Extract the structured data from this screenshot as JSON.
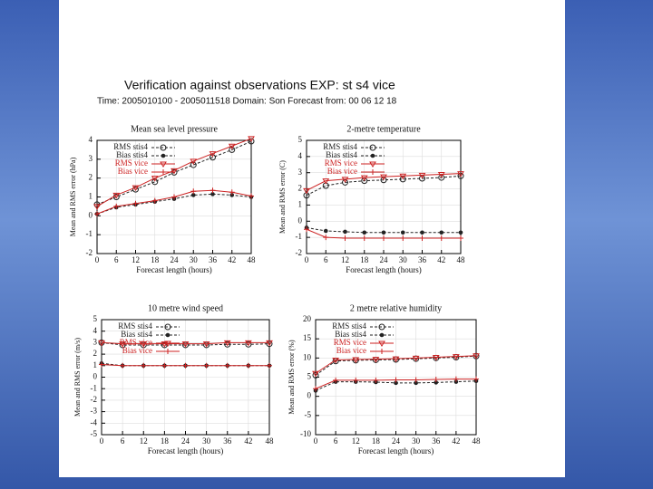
{
  "title": "Verification against observations EXP:  st s4  vice",
  "subtitle": "Time: 2005010100 - 2005011518   Domain: Son   Forecast from: 00 06 12 18",
  "chart_data": [
    {
      "type": "line",
      "title": "Mean sea level pressure",
      "xlabel": "Forecast length (hours)",
      "ylabel": "Mean and RMS error (hPa)",
      "x": [
        0,
        6,
        12,
        18,
        24,
        30,
        36,
        42,
        48
      ],
      "xlim": [
        0,
        48
      ],
      "xticks": [
        0,
        6,
        12,
        18,
        24,
        30,
        36,
        42,
        48
      ],
      "ylim": [
        -2,
        4
      ],
      "yticks": [
        -2,
        -1,
        0,
        1,
        2,
        3,
        4
      ],
      "grid": true,
      "legend": "top-left",
      "series": [
        {
          "name": "RMS stis4",
          "color": "#222222",
          "dashed": true,
          "marker": "circle",
          "values": [
            0.6,
            1.0,
            1.4,
            1.8,
            2.3,
            2.7,
            3.1,
            3.5,
            3.95
          ]
        },
        {
          "name": "Bias stis4",
          "color": "#222222",
          "dashed": true,
          "marker": "dot",
          "values": [
            0.1,
            0.45,
            0.6,
            0.75,
            0.9,
            1.1,
            1.15,
            1.1,
            1.0
          ]
        },
        {
          "name": "RMS vice",
          "color": "#cc2222",
          "dashed": false,
          "marker": "triangle",
          "values": [
            0.5,
            1.1,
            1.5,
            2.0,
            2.4,
            2.9,
            3.3,
            3.7,
            4.1
          ]
        },
        {
          "name": "Bias vice",
          "color": "#cc2222",
          "dashed": false,
          "marker": "plus",
          "values": [
            0.1,
            0.5,
            0.65,
            0.8,
            1.0,
            1.3,
            1.35,
            1.25,
            1.05
          ]
        }
      ]
    },
    {
      "type": "line",
      "title": "2-metre temperature",
      "xlabel": "Forecast length (hours)",
      "ylabel": "Mean and RMS error (C)",
      "x": [
        0,
        6,
        12,
        18,
        24,
        30,
        36,
        42,
        48
      ],
      "xlim": [
        0,
        48
      ],
      "xticks": [
        0,
        6,
        12,
        18,
        24,
        30,
        36,
        42,
        48
      ],
      "ylim": [
        -2,
        5
      ],
      "yticks": [
        -2,
        -1,
        0,
        1,
        2,
        3,
        4,
        5
      ],
      "grid": true,
      "legend": "top-left",
      "series": [
        {
          "name": "RMS stis4",
          "color": "#222222",
          "dashed": true,
          "marker": "circle",
          "values": [
            1.6,
            2.2,
            2.4,
            2.5,
            2.55,
            2.6,
            2.65,
            2.7,
            2.8
          ]
        },
        {
          "name": "Bias stis4",
          "color": "#222222",
          "dashed": true,
          "marker": "dot",
          "values": [
            -0.4,
            -0.6,
            -0.65,
            -0.7,
            -0.7,
            -0.7,
            -0.7,
            -0.7,
            -0.7
          ]
        },
        {
          "name": "RMS vice",
          "color": "#cc2222",
          "dashed": false,
          "marker": "triangle",
          "values": [
            1.9,
            2.5,
            2.6,
            2.7,
            2.75,
            2.8,
            2.85,
            2.9,
            2.95
          ]
        },
        {
          "name": "Bias vice",
          "color": "#cc2222",
          "dashed": false,
          "marker": "plus",
          "values": [
            -0.5,
            -1.0,
            -1.05,
            -1.05,
            -1.05,
            -1.05,
            -1.05,
            -1.05,
            -1.05
          ]
        }
      ]
    },
    {
      "type": "line",
      "title": "10 metre wind speed",
      "xlabel": "Forecast length (hours)",
      "ylabel": "Mean and RMS error (m/s)",
      "x": [
        0,
        6,
        12,
        18,
        24,
        30,
        36,
        42,
        48
      ],
      "xlim": [
        0,
        48
      ],
      "xticks": [
        0,
        6,
        12,
        18,
        24,
        30,
        36,
        42,
        48
      ],
      "ylim": [
        -5,
        5
      ],
      "yticks": [
        -5,
        -4,
        -3,
        -2,
        -1,
        0,
        1,
        2,
        3,
        4,
        5
      ],
      "grid": true,
      "legend": "top-left",
      "series": [
        {
          "name": "RMS stis4",
          "color": "#222222",
          "dashed": true,
          "marker": "circle",
          "values": [
            3.0,
            2.8,
            2.8,
            2.8,
            2.8,
            2.8,
            2.85,
            2.85,
            2.9
          ]
        },
        {
          "name": "Bias stis4",
          "color": "#222222",
          "dashed": true,
          "marker": "dot",
          "values": [
            1.2,
            1.0,
            1.0,
            1.0,
            1.0,
            1.0,
            1.0,
            1.0,
            1.0
          ]
        },
        {
          "name": "RMS vice",
          "color": "#cc2222",
          "dashed": false,
          "marker": "triangle",
          "values": [
            3.0,
            2.9,
            2.9,
            2.9,
            2.9,
            2.9,
            3.0,
            3.0,
            3.0
          ]
        },
        {
          "name": "Bias vice",
          "color": "#cc2222",
          "dashed": false,
          "marker": "plus",
          "values": [
            1.1,
            1.0,
            1.0,
            1.0,
            1.0,
            1.0,
            1.0,
            1.0,
            1.0
          ]
        }
      ]
    },
    {
      "type": "line",
      "title": "2 metre relative humidity",
      "xlabel": "Forecast length (hours)",
      "ylabel": "Mean and RMS error (%)",
      "x": [
        0,
        6,
        12,
        18,
        24,
        30,
        36,
        42,
        48
      ],
      "xlim": [
        0,
        48
      ],
      "xticks": [
        0,
        6,
        12,
        18,
        24,
        30,
        36,
        42,
        48
      ],
      "ylim": [
        -10,
        20
      ],
      "yticks": [
        -10,
        -5,
        0,
        5,
        10,
        15,
        20
      ],
      "grid": true,
      "legend": "top-left",
      "series": [
        {
          "name": "RMS stis4",
          "color": "#222222",
          "dashed": true,
          "marker": "circle",
          "values": [
            5.5,
            9.2,
            9.4,
            9.5,
            9.6,
            9.8,
            10,
            10.2,
            10.5
          ]
        },
        {
          "name": "Bias stis4",
          "color": "#222222",
          "dashed": true,
          "marker": "dot",
          "values": [
            1.5,
            3.8,
            3.8,
            3.7,
            3.5,
            3.5,
            3.6,
            3.8,
            4.0
          ]
        },
        {
          "name": "RMS vice",
          "color": "#cc2222",
          "dashed": false,
          "marker": "triangle",
          "values": [
            6,
            9.5,
            9.6,
            9.7,
            9.8,
            10,
            10.2,
            10.4,
            10.6
          ]
        },
        {
          "name": "Bias vice",
          "color": "#cc2222",
          "dashed": false,
          "marker": "plus",
          "values": [
            2,
            4.2,
            4.2,
            4.2,
            4.3,
            4.3,
            4.4,
            4.5,
            4.5
          ]
        }
      ]
    }
  ]
}
